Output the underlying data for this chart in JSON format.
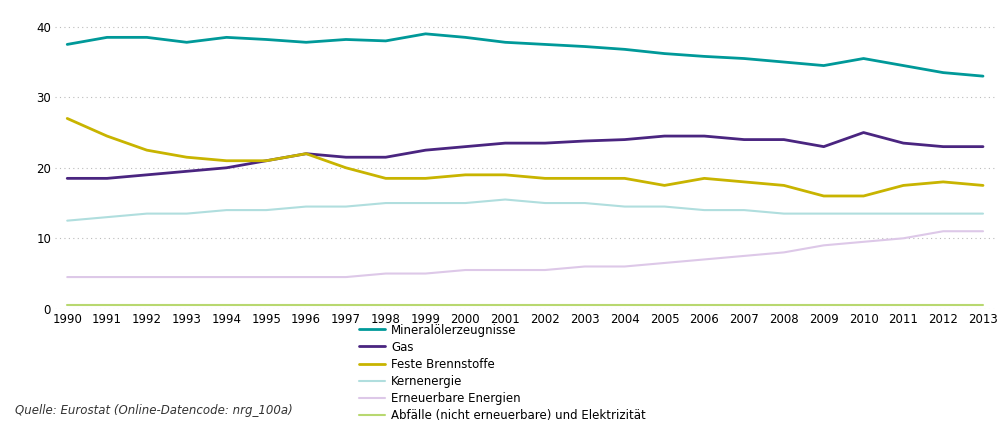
{
  "years": [
    1990,
    1991,
    1992,
    1993,
    1994,
    1995,
    1996,
    1997,
    1998,
    1999,
    2000,
    2001,
    2002,
    2003,
    2004,
    2005,
    2006,
    2007,
    2008,
    2009,
    2010,
    2011,
    2012,
    2013
  ],
  "series": {
    "Mineralölerzeugnisse": {
      "color": "#009999",
      "linewidth": 2.0,
      "values": [
        37.5,
        38.5,
        38.5,
        37.8,
        38.5,
        38.2,
        37.8,
        38.2,
        38.0,
        39.0,
        38.5,
        37.8,
        37.5,
        37.2,
        36.8,
        36.2,
        35.8,
        35.5,
        35.0,
        34.5,
        35.5,
        34.5,
        33.5,
        33.0
      ]
    },
    "Gas": {
      "color": "#4a2580",
      "linewidth": 2.0,
      "values": [
        18.5,
        18.5,
        19.0,
        19.5,
        20.0,
        21.0,
        22.0,
        21.5,
        21.5,
        22.5,
        23.0,
        23.5,
        23.5,
        23.8,
        24.0,
        24.5,
        24.5,
        24.0,
        24.0,
        23.0,
        25.0,
        23.5,
        23.0,
        23.0
      ]
    },
    "Feste Brennstoffe": {
      "color": "#c8b400",
      "linewidth": 2.0,
      "values": [
        27.0,
        24.5,
        22.5,
        21.5,
        21.0,
        21.0,
        22.0,
        20.0,
        18.5,
        18.5,
        19.0,
        19.0,
        18.5,
        18.5,
        18.5,
        17.5,
        18.5,
        18.0,
        17.5,
        16.0,
        16.0,
        17.5,
        18.0,
        17.5
      ]
    },
    "Kernenergie": {
      "color": "#b0dede",
      "linewidth": 1.5,
      "values": [
        12.5,
        13.0,
        13.5,
        13.5,
        14.0,
        14.0,
        14.5,
        14.5,
        15.0,
        15.0,
        15.0,
        15.5,
        15.0,
        15.0,
        14.5,
        14.5,
        14.0,
        14.0,
        13.5,
        13.5,
        13.5,
        13.5,
        13.5,
        13.5
      ]
    },
    "Erneuerbare Energien": {
      "color": "#ddc8e8",
      "linewidth": 1.5,
      "values": [
        4.5,
        4.5,
        4.5,
        4.5,
        4.5,
        4.5,
        4.5,
        4.5,
        5.0,
        5.0,
        5.5,
        5.5,
        5.5,
        6.0,
        6.0,
        6.5,
        7.0,
        7.5,
        8.0,
        9.0,
        9.5,
        10.0,
        11.0,
        11.0
      ]
    },
    "Abfälle (nicht erneuerbare) und Elektrizität": {
      "color": "#b8d870",
      "linewidth": 1.5,
      "values": [
        0.5,
        0.5,
        0.5,
        0.5,
        0.5,
        0.5,
        0.5,
        0.5,
        0.5,
        0.5,
        0.5,
        0.5,
        0.5,
        0.5,
        0.5,
        0.5,
        0.5,
        0.5,
        0.5,
        0.5,
        0.5,
        0.5,
        0.5,
        0.5
      ]
    }
  },
  "ylim": [
    0,
    42
  ],
  "yticks": [
    0,
    10,
    20,
    30,
    40
  ],
  "grid_color": "#bbbbbb",
  "background_color": "#ffffff",
  "source_text": "Quelle: Eurostat (Online-Datencode: nrg_100a)",
  "legend_fontsize": 8.5,
  "tick_fontsize": 8.5,
  "source_fontsize": 8.5
}
